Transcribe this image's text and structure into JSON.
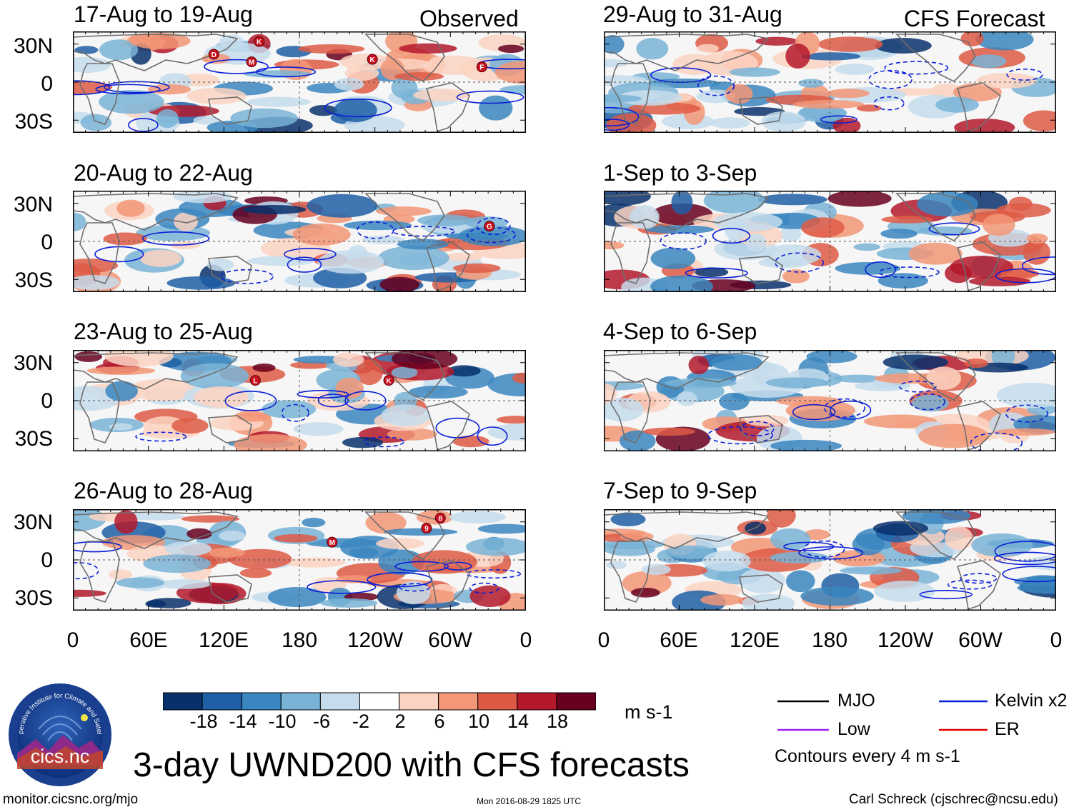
{
  "chart_data": {
    "type": "heatmap",
    "title": "3-day UWND200 with CFS forecasts",
    "variable": "200-hPa zonal wind (UWND200)",
    "units": "m s-1",
    "columns": {
      "left": "Observed",
      "right": "CFS Forecast"
    },
    "lat_ticks": [
      "30N",
      "0",
      "30S"
    ],
    "lat_range": [
      -40,
      40
    ],
    "lon_ticks": [
      "0",
      "60E",
      "120E",
      "180",
      "120W",
      "60W",
      "0"
    ],
    "lon_range": [
      0,
      360
    ],
    "colorbar": {
      "levels": [
        "-18",
        "-14",
        "-10",
        "-6",
        "-2",
        "2",
        "6",
        "10",
        "14",
        "18"
      ],
      "colors": [
        "#08306b",
        "#1f5fa6",
        "#3a86c0",
        "#79b3d6",
        "#c6dcec",
        "#ffffff",
        "#fbd3c2",
        "#f29777",
        "#de5a45",
        "#b3192b",
        "#67001f"
      ],
      "units": "m s-1"
    },
    "panels": [
      {
        "period": "17-Aug to 19-Aug",
        "kind": "Observed",
        "storms": [
          {
            "label": "D",
            "lon": 112,
            "lat": 22
          },
          {
            "label": "K",
            "lon": 148,
            "lat": 32
          },
          {
            "label": "M",
            "lon": 142,
            "lat": 16
          },
          {
            "label": "K",
            "lon": 238,
            "lat": 18
          },
          {
            "label": "F",
            "lon": 325,
            "lat": 12
          }
        ]
      },
      {
        "period": "20-Aug to 22-Aug",
        "kind": "Observed",
        "storms": [
          {
            "label": "G",
            "lon": 331,
            "lat": 12
          }
        ]
      },
      {
        "period": "23-Aug to 25-Aug",
        "kind": "Observed",
        "storms": [
          {
            "label": "L",
            "lon": 145,
            "lat": 16
          },
          {
            "label": "K",
            "lon": 251,
            "lat": 16
          }
        ]
      },
      {
        "period": "26-Aug to 28-Aug",
        "kind": "Observed",
        "storms": [
          {
            "label": "M",
            "lon": 206,
            "lat": 14
          },
          {
            "label": "9",
            "lon": 281,
            "lat": 25
          },
          {
            "label": "8",
            "lon": 292,
            "lat": 33
          }
        ]
      },
      {
        "period": "29-Aug to 31-Aug",
        "kind": "CFS Forecast",
        "storms": []
      },
      {
        "period": "1-Sep to 3-Sep",
        "kind": "CFS Forecast",
        "storms": []
      },
      {
        "period": "4-Sep to 6-Sep",
        "kind": "CFS Forecast",
        "storms": []
      },
      {
        "period": "7-Sep to 9-Sep",
        "kind": "CFS Forecast",
        "storms": []
      }
    ]
  },
  "legend": {
    "items": [
      {
        "label": "MJO",
        "color": "#000000"
      },
      {
        "label": "Kelvin x2",
        "color": "#0b1fd6"
      },
      {
        "label": "Low",
        "color": "#a020f0"
      },
      {
        "label": "ER",
        "color": "#e00000"
      }
    ],
    "contours_note": "Contours every 4 m s-1"
  },
  "logo": {
    "text": "cics.nc",
    "ring_text": "Cooperative Institute for Climate and Satellites"
  },
  "footer": {
    "url": "monitor.cicsnc.org/mjo",
    "timestamp": "Mon 2016-08-29 1825 UTC",
    "author": "Carl Schreck (cjschrec@ncsu.edu)"
  }
}
